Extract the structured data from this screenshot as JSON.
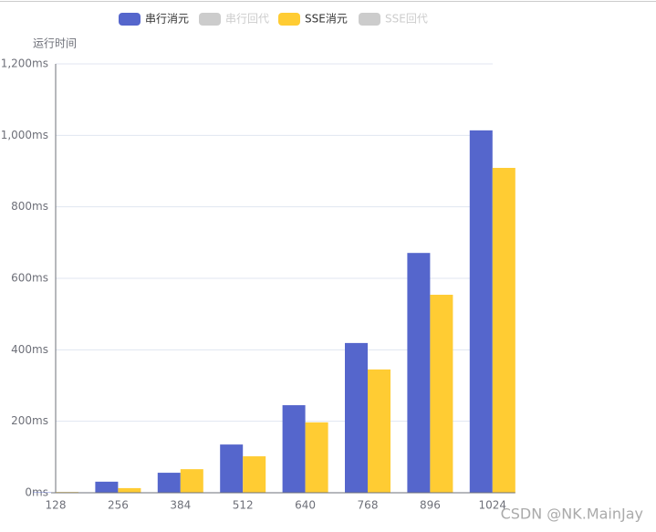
{
  "chart_data": {
    "type": "bar",
    "y_axis_label": "运行时间",
    "categories": [
      "128",
      "256",
      "384",
      "512",
      "640",
      "768",
      "896",
      "1024"
    ],
    "series": [
      {
        "name": "串行消元",
        "color": "#5566cc",
        "visible": true,
        "values": [
          1,
          31,
          56,
          135,
          245,
          419,
          671,
          1014
        ]
      },
      {
        "name": "串行回代",
        "color": "#cccccc",
        "visible": false,
        "values": [
          null,
          null,
          null,
          null,
          null,
          null,
          null,
          null
        ]
      },
      {
        "name": "SSE消元",
        "color": "#ffcc33",
        "visible": true,
        "values": [
          2,
          13,
          66,
          102,
          197,
          345,
          554,
          909
        ]
      },
      {
        "name": "SSE回代",
        "color": "#cccccc",
        "visible": false,
        "values": [
          null,
          null,
          null,
          null,
          null,
          null,
          null,
          null
        ]
      }
    ],
    "ylim": [
      0,
      1200
    ],
    "yticks": [
      {
        "value": 0,
        "label": "0ms"
      },
      {
        "value": 200,
        "label": "200ms"
      },
      {
        "value": 400,
        "label": "400ms"
      },
      {
        "value": 600,
        "label": "600ms"
      },
      {
        "value": 800,
        "label": "800ms"
      },
      {
        "value": 1000,
        "label": "1,000ms"
      },
      {
        "value": 1200,
        "label": "1,200ms"
      }
    ],
    "grid": true,
    "legend_position": "top",
    "watermark": "CSDN @NK.MainJay"
  }
}
